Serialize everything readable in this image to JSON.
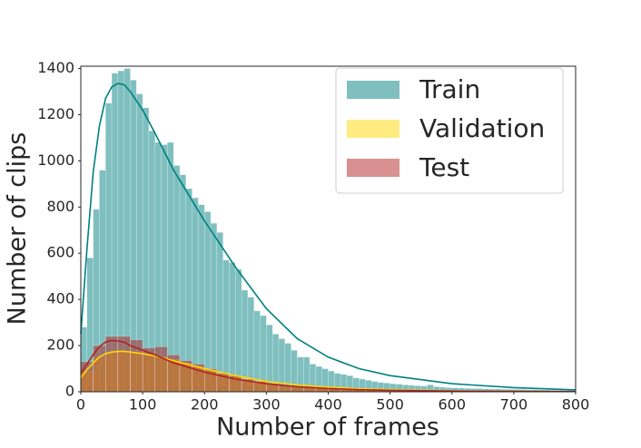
{
  "chart_data": {
    "type": "histogram",
    "xlabel": "Number of frames",
    "ylabel": "Number of clips",
    "xlim": [
      0,
      800
    ],
    "ylim": [
      0,
      1410
    ],
    "xticks": [
      0,
      100,
      200,
      300,
      400,
      500,
      600,
      700,
      800
    ],
    "yticks": [
      0,
      200,
      400,
      600,
      800,
      1000,
      1200,
      1400
    ],
    "legend": "upper right",
    "series": [
      {
        "name": "Train",
        "color": "#008080",
        "bins": [
          0,
          10,
          20,
          30,
          40,
          50,
          60,
          70,
          80,
          90,
          100,
          110,
          120,
          130,
          140,
          150,
          160,
          170,
          180,
          190,
          200,
          210,
          220,
          230,
          240,
          250,
          260,
          270,
          280,
          290,
          300,
          310,
          320,
          330,
          340,
          350,
          360,
          370,
          380,
          390,
          400,
          410,
          420,
          430,
          440,
          450,
          460,
          470,
          480,
          490,
          500,
          510,
          520,
          530,
          540,
          550,
          560,
          570,
          580,
          590,
          600,
          610,
          620,
          630,
          640,
          650,
          660,
          670,
          680,
          690,
          700,
          710,
          720,
          730,
          740,
          750,
          760,
          770,
          780,
          790,
          800
        ],
        "values": [
          280,
          580,
          790,
          960,
          1250,
          1380,
          1390,
          1400,
          1350,
          1290,
          1230,
          1130,
          1080,
          1070,
          1080,
          980,
          940,
          880,
          840,
          810,
          780,
          730,
          690,
          570,
          560,
          530,
          440,
          410,
          350,
          330,
          290,
          250,
          230,
          210,
          180,
          150,
          150,
          120,
          110,
          100,
          90,
          80,
          75,
          70,
          60,
          55,
          50,
          45,
          40,
          38,
          35,
          33,
          30,
          28,
          26,
          25,
          30,
          22,
          20,
          18,
          17,
          16,
          15,
          14,
          14,
          13,
          12,
          12,
          11,
          11,
          10,
          10,
          9,
          9,
          8,
          8,
          7,
          7,
          6,
          6
        ],
        "kde": {
          "x": [
            0,
            10,
            20,
            30,
            40,
            50,
            60,
            70,
            80,
            100,
            120,
            150,
            200,
            250,
            300,
            350,
            400,
            450,
            500,
            600,
            700,
            800
          ],
          "values": [
            250,
            620,
            950,
            1150,
            1270,
            1320,
            1335,
            1330,
            1300,
            1220,
            1120,
            960,
            740,
            540,
            360,
            230,
            150,
            100,
            70,
            35,
            18,
            8
          ]
        }
      },
      {
        "name": "Validation",
        "color": "#ffd700",
        "bins": [
          0,
          20,
          40,
          60,
          80,
          100,
          120,
          140,
          160,
          180,
          200,
          220,
          240,
          260,
          280,
          300,
          320,
          340,
          360,
          380,
          400,
          420,
          440,
          460,
          480,
          500,
          520,
          540,
          560,
          580,
          600,
          620,
          640,
          660,
          680,
          700,
          720,
          740,
          760,
          780,
          800
        ],
        "values": [
          90,
          150,
          170,
          175,
          170,
          160,
          150,
          140,
          125,
          110,
          95,
          80,
          68,
          55,
          45,
          36,
          29,
          23,
          18,
          14,
          11,
          9,
          8,
          7,
          6,
          5,
          4,
          4,
          3,
          3,
          3,
          2,
          2,
          2,
          2,
          1,
          1,
          1,
          1,
          1
        ],
        "kde": {
          "x": [
            0,
            10,
            20,
            30,
            40,
            50,
            60,
            70,
            80,
            100,
            120,
            150,
            200,
            250,
            300,
            350,
            400,
            450,
            500,
            600,
            700,
            800
          ],
          "values": [
            60,
            95,
            125,
            150,
            165,
            172,
            175,
            175,
            172,
            165,
            155,
            135,
            100,
            70,
            45,
            30,
            20,
            13,
            9,
            4,
            2,
            1
          ]
        }
      },
      {
        "name": "Test",
        "color": "#b22222",
        "bins": [
          0,
          20,
          40,
          60,
          80,
          100,
          120,
          140,
          160,
          180,
          200,
          220,
          240,
          260,
          280,
          300,
          320,
          340,
          360,
          380,
          400,
          420,
          440,
          460,
          480,
          500,
          520,
          540,
          560,
          580,
          600,
          620,
          640,
          660,
          680,
          700,
          720,
          740,
          760,
          780,
          800
        ],
        "values": [
          130,
          200,
          240,
          240,
          225,
          190,
          195,
          160,
          135,
          120,
          100,
          80,
          70,
          55,
          45,
          35,
          28,
          22,
          18,
          14,
          12,
          10,
          9,
          8,
          7,
          6,
          5,
          5,
          4,
          4,
          3,
          3,
          3,
          2,
          2,
          2,
          2,
          1,
          1,
          1
        ],
        "kde": {
          "x": [
            0,
            10,
            20,
            30,
            40,
            50,
            60,
            70,
            80,
            100,
            120,
            150,
            200,
            250,
            300,
            350,
            400,
            450,
            500,
            600,
            700,
            800
          ],
          "values": [
            80,
            120,
            160,
            195,
            215,
            222,
            220,
            215,
            200,
            180,
            160,
            125,
            85,
            55,
            35,
            22,
            14,
            9,
            6,
            3,
            2,
            1
          ]
        }
      }
    ]
  }
}
